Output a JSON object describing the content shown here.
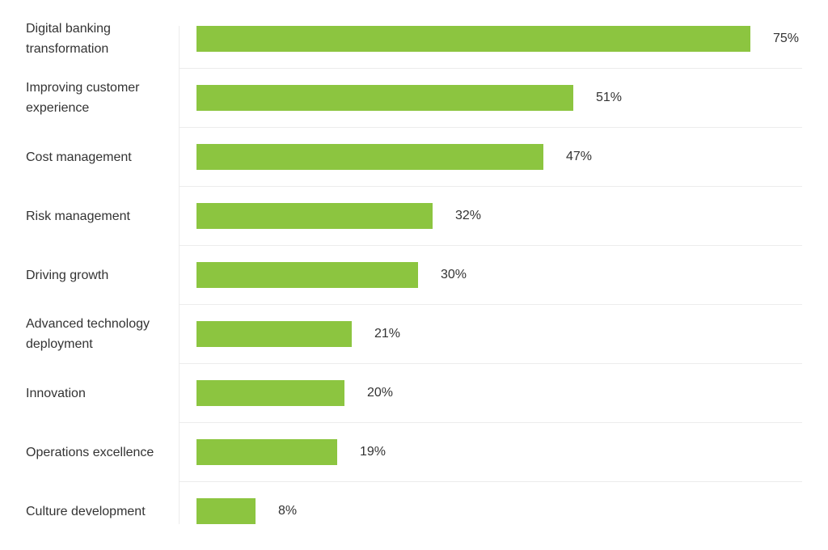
{
  "chart_data": {
    "type": "bar",
    "orientation": "horizontal",
    "categories": [
      "Digital banking transformation",
      "Improving customer experience",
      "Cost management",
      "Risk management",
      "Driving growth",
      "Advanced technology deployment",
      "Innovation",
      "Operations excellence",
      "Culture development"
    ],
    "values": [
      75,
      51,
      47,
      32,
      30,
      21,
      20,
      19,
      8
    ],
    "value_labels": [
      "75%",
      "51%",
      "47%",
      "32%",
      "30%",
      "21%",
      "20%",
      "19%",
      "8%"
    ],
    "unit": "%",
    "xlim": [
      0,
      75
    ],
    "bar_color": "#8cc540",
    "grid": false,
    "legend": "none",
    "title": "",
    "xlabel": "",
    "ylabel": ""
  }
}
